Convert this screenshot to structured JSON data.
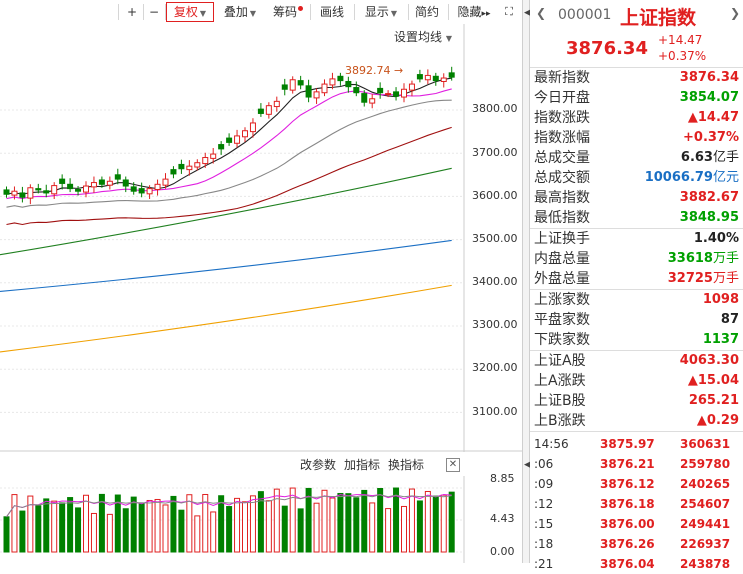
{
  "toolbar": {
    "plus": "+",
    "minus": "−",
    "fuquan": "复权",
    "diejia": "叠加",
    "chouma": "筹码",
    "huaxian": "画线",
    "xianshi": "显示",
    "jianyue": "简约",
    "yincang": "隐藏",
    "ma_setting": "设置均线"
  },
  "chart": {
    "max_label": "3892.74",
    "y_labels": [
      "3800.00",
      "3700.00",
      "3600.00",
      "3500.00",
      "3400.00",
      "3300.00",
      "3200.00",
      "3100.00"
    ],
    "colors": {
      "up": "#e02020",
      "down": "#008000",
      "ma5": "#222222",
      "ma10": "#e020e0",
      "ma20": "#888888",
      "ma30": "#a01010",
      "ma60": "#208020",
      "ma120": "#1a6fc4",
      "ma250": "#f0a000"
    }
  },
  "sub_chart": {
    "change_param": "改参数",
    "add_indicator": "加指标",
    "swap_indicator": "换指标",
    "close": "✕",
    "y_labels": [
      "8.85",
      "4.43",
      "0.00"
    ]
  },
  "quote": {
    "code": "000001",
    "name": "上证指数",
    "price": "3876.34",
    "change": "+14.47",
    "change_pct": "+0.37%",
    "rows1": [
      {
        "k": "最新指数",
        "v": "3876.34",
        "c": "red"
      },
      {
        "k": "今日开盘",
        "v": "3854.07",
        "c": "green"
      },
      {
        "k": "指数涨跌",
        "v": "▲14.47",
        "c": "red"
      },
      {
        "k": "指数涨幅",
        "v": "+0.37%",
        "c": "red"
      },
      {
        "k": "总成交量",
        "v": "6.63",
        "u": "亿手",
        "c": "dark"
      },
      {
        "k": "总成交额",
        "v": "10066.79",
        "u": "亿元",
        "c": "blue"
      },
      {
        "k": "最高指数",
        "v": "3882.67",
        "c": "red"
      },
      {
        "k": "最低指数",
        "v": "3848.95",
        "c": "green"
      }
    ],
    "rows2": [
      {
        "k": "上证换手",
        "v": "1.40%",
        "c": "dark"
      },
      {
        "k": "内盘总量",
        "v": "33618",
        "u": "万手",
        "c": "green"
      },
      {
        "k": "外盘总量",
        "v": "32725",
        "u": "万手",
        "c": "red"
      }
    ],
    "rows3": [
      {
        "k": "上涨家数",
        "v": "1098",
        "c": "red"
      },
      {
        "k": "平盘家数",
        "v": "87",
        "c": "dark"
      },
      {
        "k": "下跌家数",
        "v": "1137",
        "c": "green"
      }
    ],
    "rows4": [
      {
        "k": "上证A股",
        "v": "4063.30",
        "c": "red"
      },
      {
        "k": "上A涨跌",
        "v": "▲15.04",
        "c": "red"
      },
      {
        "k": "上证B股",
        "v": "265.21",
        "c": "red"
      },
      {
        "k": "上B涨跌",
        "v": "▲0.29",
        "c": "red"
      }
    ],
    "ticks": [
      {
        "t": "14:56",
        "p": "3875.97",
        "v": "360631"
      },
      {
        "t": ":06",
        "p": "3876.21",
        "v": "259780"
      },
      {
        "t": ":09",
        "p": "3876.12",
        "v": "240265"
      },
      {
        "t": ":12",
        "p": "3876.18",
        "v": "254607"
      },
      {
        "t": ":15",
        "p": "3876.00",
        "v": "249441"
      },
      {
        "t": ":18",
        "p": "3876.26",
        "v": "226937"
      },
      {
        "t": ":21",
        "p": "3876.04",
        "v": "243878"
      }
    ]
  }
}
